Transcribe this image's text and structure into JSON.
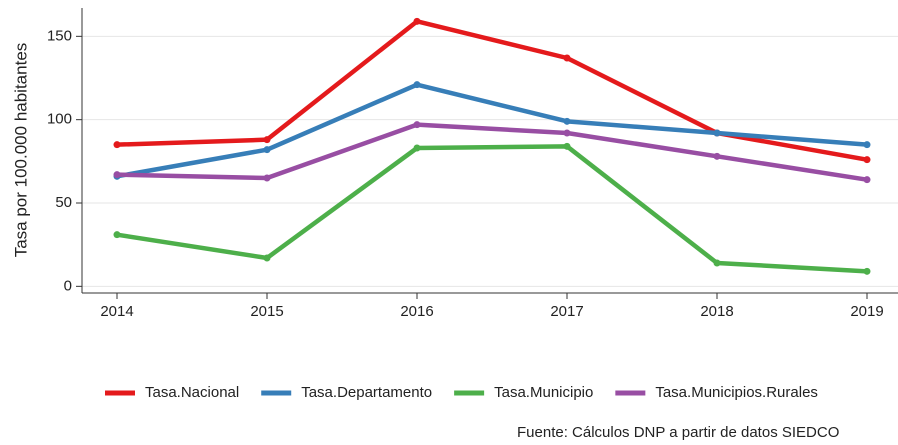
{
  "chart_data": {
    "type": "line",
    "y_label": "Tasa por 100.000 habitantes",
    "source": "Fuente: Cálculos DNP a partir de datos SIEDCO",
    "categories": [
      "2014",
      "2015",
      "2016",
      "2017",
      "2018",
      "2019"
    ],
    "series": [
      {
        "name": "Tasa.Nacional",
        "color": "#e41a1c",
        "values": [
          85,
          88,
          159,
          137,
          92,
          76
        ]
      },
      {
        "name": "Tasa.Departamento",
        "color": "#377eb8",
        "values": [
          66,
          82,
          121,
          99,
          92,
          85
        ]
      },
      {
        "name": "Tasa.Municipio",
        "color": "#4daf4a",
        "values": [
          31,
          17,
          83,
          84,
          14,
          9
        ]
      },
      {
        "name": "Tasa.Municipios.Rurales",
        "color": "#984ea3",
        "values": [
          67,
          65,
          97,
          92,
          78,
          64
        ]
      }
    ],
    "ylim": [
      -4,
      167
    ],
    "yticks": [
      0,
      50,
      100,
      150
    ],
    "grid": true,
    "legend": "bottom"
  }
}
